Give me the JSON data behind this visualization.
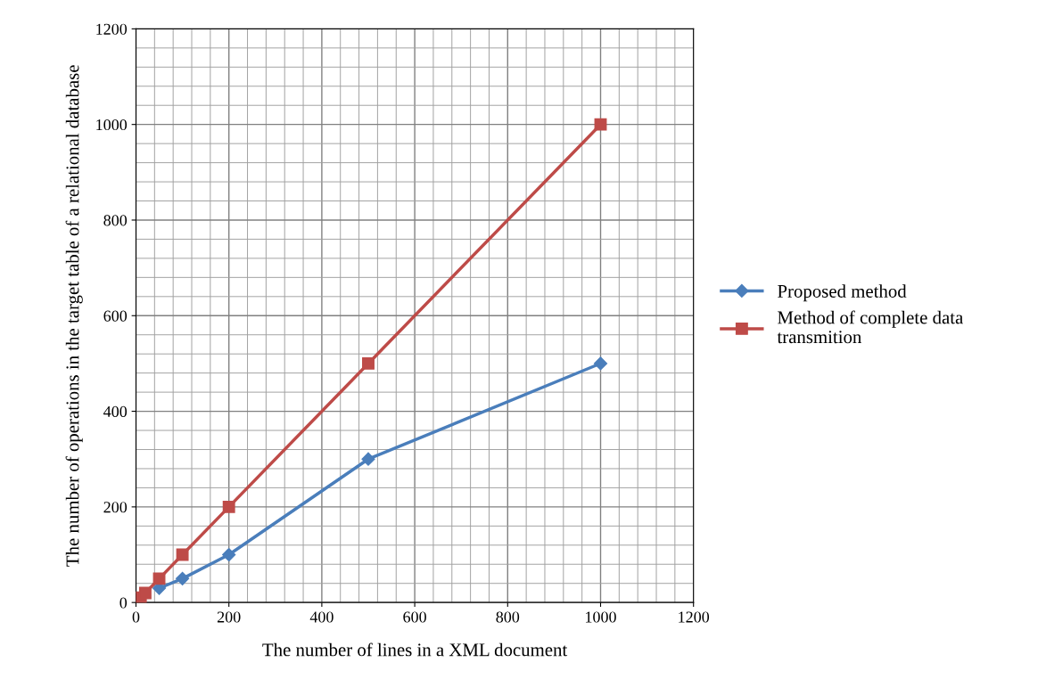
{
  "chart_data": {
    "type": "line",
    "xlabel": "The number of lines in a XML document",
    "ylabel": "The number of operations in the target table of a relational database",
    "xlim": [
      0,
      1200
    ],
    "xticks": [
      0,
      200,
      400,
      600,
      800,
      1000,
      1200
    ],
    "ylim": [
      0,
      1200
    ],
    "yticks": [
      0,
      200,
      400,
      600,
      800,
      1000,
      1200
    ],
    "grid": true,
    "legend": "right",
    "series": [
      {
        "name": "Proposed method",
        "color": "#4a7ebb",
        "marker": "diamond",
        "x": [
          50,
          100,
          200,
          500,
          1000
        ],
        "values": [
          30,
          50,
          100,
          300,
          500
        ]
      },
      {
        "name": "Method of complete data transmition",
        "color": "#be4b48",
        "marker": "square",
        "x": [
          10,
          20,
          50,
          100,
          200,
          500,
          1000
        ],
        "values": [
          10,
          20,
          50,
          100,
          200,
          500,
          1000
        ]
      }
    ]
  }
}
